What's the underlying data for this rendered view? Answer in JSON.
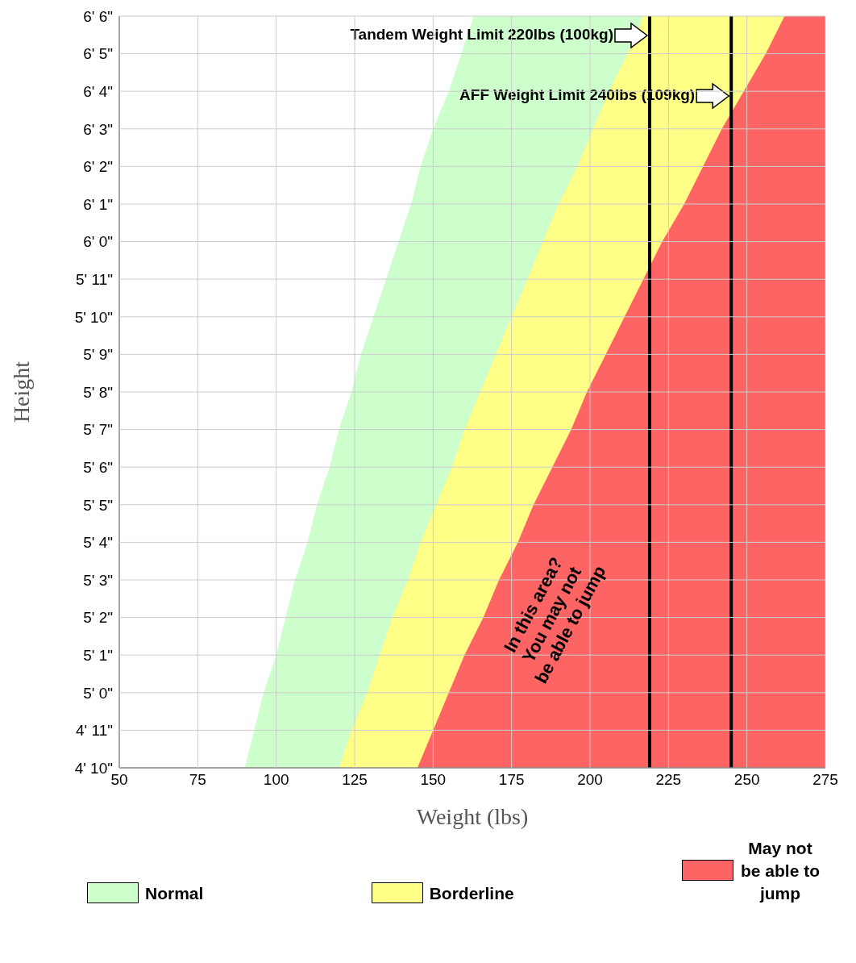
{
  "chart_data": {
    "type": "area",
    "orientation": "horizontal",
    "xlabel": "Weight (lbs)",
    "ylabel": "Height",
    "categories": [
      "6' 6\"",
      "6' 5\"",
      "6' 4\"",
      "6' 3\"",
      "6' 2\"",
      "6' 1\"",
      "6' 0\"",
      "5' 11\"",
      "5' 10\"",
      "5' 9\"",
      "5' 8\"",
      "5' 7\"",
      "5' 6\"",
      "5' 5\"",
      "5' 4\"",
      "5' 3\"",
      "5' 2\"",
      "5' 1\"",
      "5' 0\"",
      "4' 11\"",
      "4' 10\""
    ],
    "series": [
      {
        "color": "#ffffff",
        "values": [
          163,
          159,
          155,
          150,
          146,
          143,
          139,
          135,
          131,
          127,
          124,
          120,
          117,
          113,
          110,
          106,
          103,
          100,
          96,
          93,
          90
        ]
      },
      {
        "name": "Normal",
        "color": "#ccffcc",
        "values": [
          217,
          212,
          206,
          201,
          196,
          190,
          185,
          180,
          175,
          170,
          165,
          160,
          156,
          151,
          146,
          142,
          137,
          133,
          129,
          124,
          120
        ]
      },
      {
        "name": "Borderline",
        "color": "#ffff88",
        "values": [
          262,
          256,
          249,
          242,
          236,
          230,
          223,
          217,
          211,
          205,
          199,
          194,
          188,
          182,
          177,
          171,
          166,
          160,
          155,
          150,
          145
        ]
      },
      {
        "name": "May not be able to jump",
        "color": "#ff6464",
        "values": [
          275,
          275,
          275,
          275,
          275,
          275,
          275,
          275,
          275,
          275,
          275,
          275,
          275,
          275,
          275,
          275,
          275,
          275,
          275,
          275,
          275
        ]
      }
    ],
    "xlim": [
      50,
      275
    ],
    "xticks": [
      50,
      75,
      100,
      125,
      150,
      175,
      200,
      225,
      250,
      275
    ],
    "ref_lines": [
      {
        "axis": "x",
        "value": 219,
        "label": "Tandem Weight Limit 220lbs (100kg)",
        "color": "#000000"
      },
      {
        "axis": "x",
        "value": 245,
        "label": "AFF Weight Limit 240lbs (109kg)",
        "color": "#000000"
      }
    ],
    "annotations": [
      "In this area?\nYou may not\nbe able to jump"
    ],
    "grid": true,
    "legend": "bottom"
  }
}
